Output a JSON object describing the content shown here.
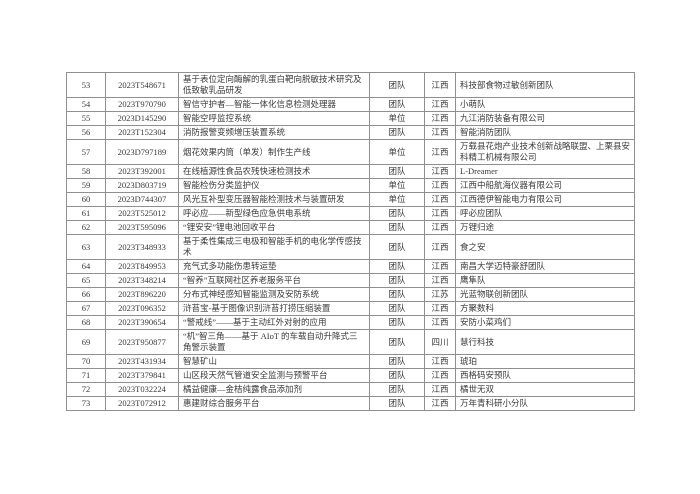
{
  "document": {
    "background_color": "#ffffff",
    "border_color": "#8f8f8f",
    "text_color": "#3a3a3a"
  },
  "table": {
    "row_keys": [
      "index",
      "code",
      "project",
      "type",
      "province",
      "org"
    ],
    "rows": [
      {
        "index": "53",
        "code": "2023T548671",
        "project": "基于表位定向酶解的乳蛋白靶向脱敏技术研究及低致敏乳品研发",
        "type": "团队",
        "province": "江西",
        "org": "科技部食物过敏创新团队"
      },
      {
        "index": "54",
        "code": "2023T970790",
        "project": "智信守护者—智能一体化信息检测处理器",
        "type": "团队",
        "province": "江西",
        "org": "小萌队"
      },
      {
        "index": "55",
        "code": "2023D145290",
        "project": "智能空呼监控系统",
        "type": "单位",
        "province": "江西",
        "org": "九江消防装备有限公司"
      },
      {
        "index": "56",
        "code": "2023T152304",
        "project": "消防报警变频增压装置系统",
        "type": "团队",
        "province": "江西",
        "org": "智能消防团队"
      },
      {
        "index": "57",
        "code": "2023D797189",
        "project": "烟花效果内筒（单发）制作生产线",
        "type": "单位",
        "province": "江西",
        "org": "万载县花炮产业技术创新战略联盟、上栗县安科精工机械有限公司"
      },
      {
        "index": "58",
        "code": "2023T392001",
        "project": "在线植源性食品农残快速检测技术",
        "type": "团队",
        "province": "江西",
        "org": "L-Dreamer"
      },
      {
        "index": "59",
        "code": "2023D803719",
        "project": "智能检伤分类监护仪",
        "type": "单位",
        "province": "江西",
        "org": "江西中船航海仪器有限公司"
      },
      {
        "index": "60",
        "code": "2023D744307",
        "project": "风光互补型变压器智能检测技术与装置研发",
        "type": "单位",
        "province": "江西",
        "org": "江西德伊智能电力有限公司"
      },
      {
        "index": "61",
        "code": "2023T525012",
        "project": "呼必应——新型绿色应急供电系统",
        "type": "团队",
        "province": "江西",
        "org": "呼必应团队"
      },
      {
        "index": "62",
        "code": "2023T595096",
        "project": "“锂安安”锂电池回收平台",
        "type": "团队",
        "province": "江西",
        "org": "万锂归途"
      },
      {
        "index": "63",
        "code": "2023T348933",
        "project": "基于柔性集成三电极和智能手机的电化学传感技术",
        "type": "团队",
        "province": "江西",
        "org": "食之安"
      },
      {
        "index": "64",
        "code": "2023T849953",
        "project": "充气式多功能伤患转运垫",
        "type": "团队",
        "province": "江西",
        "org": "南昌大学迈特豪舒团队"
      },
      {
        "index": "65",
        "code": "2023T348214",
        "project": "“智养”互联网社区养老服务平台",
        "type": "团队",
        "province": "江西",
        "org": "鹰隼队"
      },
      {
        "index": "66",
        "code": "2023T896220",
        "project": "分布式神经感知智能监测及安防系统",
        "type": "团队",
        "province": "江苏",
        "org": "光蓝物联创新团队"
      },
      {
        "index": "67",
        "code": "2023T096352",
        "project": "浒苔宝-基于图像识别浒苔打捞压缩装置",
        "type": "团队",
        "province": "江西",
        "org": "方聚数科"
      },
      {
        "index": "68",
        "code": "2023T390654",
        "project": "“警戒线”——基于主动红外对射的应用",
        "type": "团队",
        "province": "江西",
        "org": "安防小菜鸡们"
      },
      {
        "index": "69",
        "code": "2023T950877",
        "project": "“机”智三角——基于 AIoT 的车载自动升降式三角警示装置",
        "type": "团队",
        "province": "四川",
        "org": "慧行科技"
      },
      {
        "index": "70",
        "code": "2023T431934",
        "project": "智慧矿山",
        "type": "团队",
        "province": "江西",
        "org": "琥珀"
      },
      {
        "index": "71",
        "code": "2023T379841",
        "project": "山区段天然气管道安全监测与预警平台",
        "type": "团队",
        "province": "江西",
        "org": "西格码安预队"
      },
      {
        "index": "72",
        "code": "2023T032224",
        "project": "橘益健康—金桔纯露食品添加剂",
        "type": "团队",
        "province": "江西",
        "org": "橘世无双"
      },
      {
        "index": "73",
        "code": "2023T072912",
        "project": "惠建财综合服务平台",
        "type": "团队",
        "province": "江西",
        "org": "万年青科研小分队"
      }
    ]
  }
}
